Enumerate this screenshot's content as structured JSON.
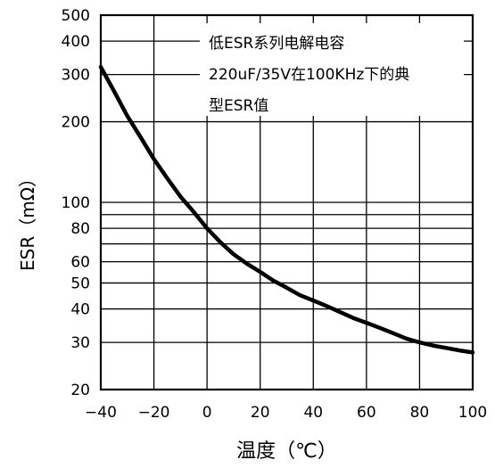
{
  "chart_data": {
    "type": "line",
    "title": "",
    "xlabel": "温度（℃）",
    "ylabel": "ESR（mΩ）",
    "xlim": [
      -40,
      100
    ],
    "ylim": [
      20,
      500
    ],
    "yscale": "log",
    "grid": true,
    "x_ticks": [
      -40,
      -20,
      0,
      20,
      40,
      60,
      80,
      100
    ],
    "x_tick_labels": [
      "−40",
      "−20",
      "0",
      "20",
      "40",
      "60",
      "80",
      "100"
    ],
    "y_ticks": [
      20,
      30,
      40,
      50,
      60,
      80,
      100,
      200,
      300,
      400,
      500
    ],
    "y_tick_labels": [
      "20",
      "30",
      "40",
      "50",
      "60",
      "80",
      "100",
      "200",
      "300",
      "400",
      "500"
    ],
    "annotation": [
      "低ESR系列电解电容",
      "220uF/35V在100KHz下的典",
      "型ESR值"
    ],
    "series": [
      {
        "x": [
          -40,
          -35,
          -30,
          -25,
          -20,
          -15,
          -10,
          -5,
          0,
          5,
          10,
          15,
          20,
          25,
          30,
          35,
          40,
          45,
          50,
          55,
          60,
          65,
          70,
          75,
          80,
          85,
          90,
          95,
          100
        ],
        "y": [
          320,
          260,
          210,
          175,
          145,
          123,
          105,
          92,
          80,
          71,
          64,
          59,
          55,
          51,
          48,
          45,
          43,
          41,
          39,
          37,
          35.5,
          34,
          32.5,
          31,
          30,
          29.2,
          28.6,
          28,
          27.5
        ],
        "color": "#000000"
      }
    ]
  }
}
